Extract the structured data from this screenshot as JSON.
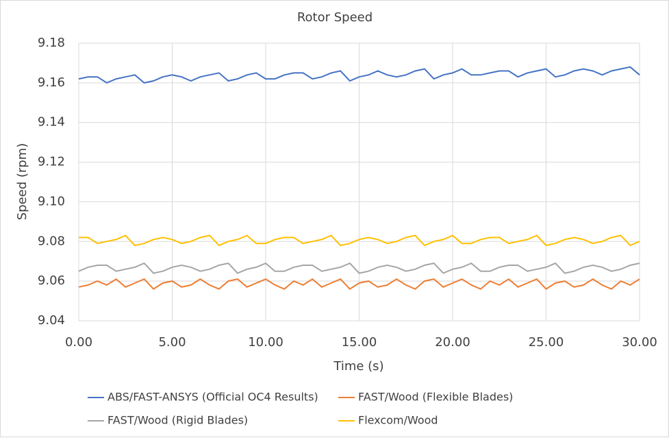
{
  "chart_data": {
    "type": "line",
    "title": "Rotor Speed",
    "x_label": "Time (s)",
    "y_label": "Speed (rpm)",
    "x": [
      0,
      0.5,
      1,
      1.5,
      2,
      2.5,
      3,
      3.5,
      4,
      4.5,
      5,
      5.5,
      6,
      6.5,
      7,
      7.5,
      8,
      8.5,
      9,
      9.5,
      10,
      10.5,
      11,
      11.5,
      12,
      12.5,
      13,
      13.5,
      14,
      14.5,
      15,
      15.5,
      16,
      16.5,
      17,
      17.5,
      18,
      18.5,
      19,
      19.5,
      20,
      20.5,
      21,
      21.5,
      22,
      22.5,
      23,
      23.5,
      24,
      24.5,
      25,
      25.5,
      26,
      26.5,
      27,
      27.5,
      28,
      28.5,
      29,
      29.5,
      30
    ],
    "series": [
      {
        "name": "ABS/FAST-ANSYS (Official OC4 Results)",
        "color": "#4472c4",
        "values": [
          9.162,
          9.163,
          9.163,
          9.16,
          9.162,
          9.163,
          9.164,
          9.16,
          9.161,
          9.163,
          9.164,
          9.163,
          9.161,
          9.163,
          9.164,
          9.165,
          9.161,
          9.162,
          9.164,
          9.165,
          9.162,
          9.162,
          9.164,
          9.165,
          9.165,
          9.162,
          9.163,
          9.165,
          9.166,
          9.161,
          9.163,
          9.164,
          9.166,
          9.164,
          9.163,
          9.164,
          9.166,
          9.167,
          9.162,
          9.164,
          9.165,
          9.167,
          9.164,
          9.164,
          9.165,
          9.166,
          9.166,
          9.163,
          9.165,
          9.166,
          9.167,
          9.163,
          9.164,
          9.166,
          9.167,
          9.166,
          9.164,
          9.166,
          9.167,
          9.168,
          9.164
        ]
      },
      {
        "name": "FAST/Wood (Flexible Blades)",
        "color": "#ed7d31",
        "values": [
          9.057,
          9.058,
          9.06,
          9.058,
          9.061,
          9.057,
          9.059,
          9.061,
          9.056,
          9.059,
          9.06,
          9.057,
          9.058,
          9.061,
          9.058,
          9.056,
          9.06,
          9.061,
          9.057,
          9.059,
          9.061,
          9.058,
          9.056,
          9.06,
          9.058,
          9.061,
          9.057,
          9.059,
          9.061,
          9.056,
          9.059,
          9.06,
          9.057,
          9.058,
          9.061,
          9.058,
          9.056,
          9.06,
          9.061,
          9.057,
          9.059,
          9.061,
          9.058,
          9.056,
          9.06,
          9.058,
          9.061,
          9.057,
          9.059,
          9.061,
          9.056,
          9.059,
          9.06,
          9.057,
          9.058,
          9.061,
          9.058,
          9.056,
          9.06,
          9.058,
          9.061
        ]
      },
      {
        "name": "FAST/Wood (Rigid Blades)",
        "color": "#a5a5a5",
        "values": [
          9.065,
          9.067,
          9.068,
          9.068,
          9.065,
          9.066,
          9.067,
          9.069,
          9.064,
          9.065,
          9.067,
          9.068,
          9.067,
          9.065,
          9.066,
          9.068,
          9.069,
          9.064,
          9.066,
          9.067,
          9.069,
          9.065,
          9.065,
          9.067,
          9.068,
          9.068,
          9.065,
          9.066,
          9.067,
          9.069,
          9.064,
          9.065,
          9.067,
          9.068,
          9.067,
          9.065,
          9.066,
          9.068,
          9.069,
          9.064,
          9.066,
          9.067,
          9.069,
          9.065,
          9.065,
          9.067,
          9.068,
          9.068,
          9.065,
          9.066,
          9.067,
          9.069,
          9.064,
          9.065,
          9.067,
          9.068,
          9.067,
          9.065,
          9.066,
          9.068,
          9.069
        ]
      },
      {
        "name": "Flexcom/Wood",
        "color": "#ffc000",
        "values": [
          9.082,
          9.082,
          9.079,
          9.08,
          9.081,
          9.083,
          9.078,
          9.079,
          9.081,
          9.082,
          9.081,
          9.079,
          9.08,
          9.082,
          9.083,
          9.078,
          9.08,
          9.081,
          9.083,
          9.079,
          9.079,
          9.081,
          9.082,
          9.082,
          9.079,
          9.08,
          9.081,
          9.083,
          9.078,
          9.079,
          9.081,
          9.082,
          9.081,
          9.079,
          9.08,
          9.082,
          9.083,
          9.078,
          9.08,
          9.081,
          9.083,
          9.079,
          9.079,
          9.081,
          9.082,
          9.082,
          9.079,
          9.08,
          9.081,
          9.083,
          9.078,
          9.079,
          9.081,
          9.082,
          9.081,
          9.079,
          9.08,
          9.082,
          9.083,
          9.078,
          9.08
        ]
      }
    ],
    "xlim": [
      0,
      30
    ],
    "ylim": [
      9.04,
      9.18
    ],
    "xticks": [
      {
        "value": 0,
        "label": "0.00"
      },
      {
        "value": 5,
        "label": "5.00"
      },
      {
        "value": 10,
        "label": "10.00"
      },
      {
        "value": 15,
        "label": "15.00"
      },
      {
        "value": 20,
        "label": "20.00"
      },
      {
        "value": 25,
        "label": "25.00"
      },
      {
        "value": 30,
        "label": "30.00"
      }
    ],
    "yticks": [
      9.04,
      9.06,
      9.08,
      {
        "value": 9.1,
        "label": "9.10"
      },
      9.12,
      9.14,
      9.16,
      9.18
    ],
    "grid": true,
    "legend": "bottom"
  }
}
